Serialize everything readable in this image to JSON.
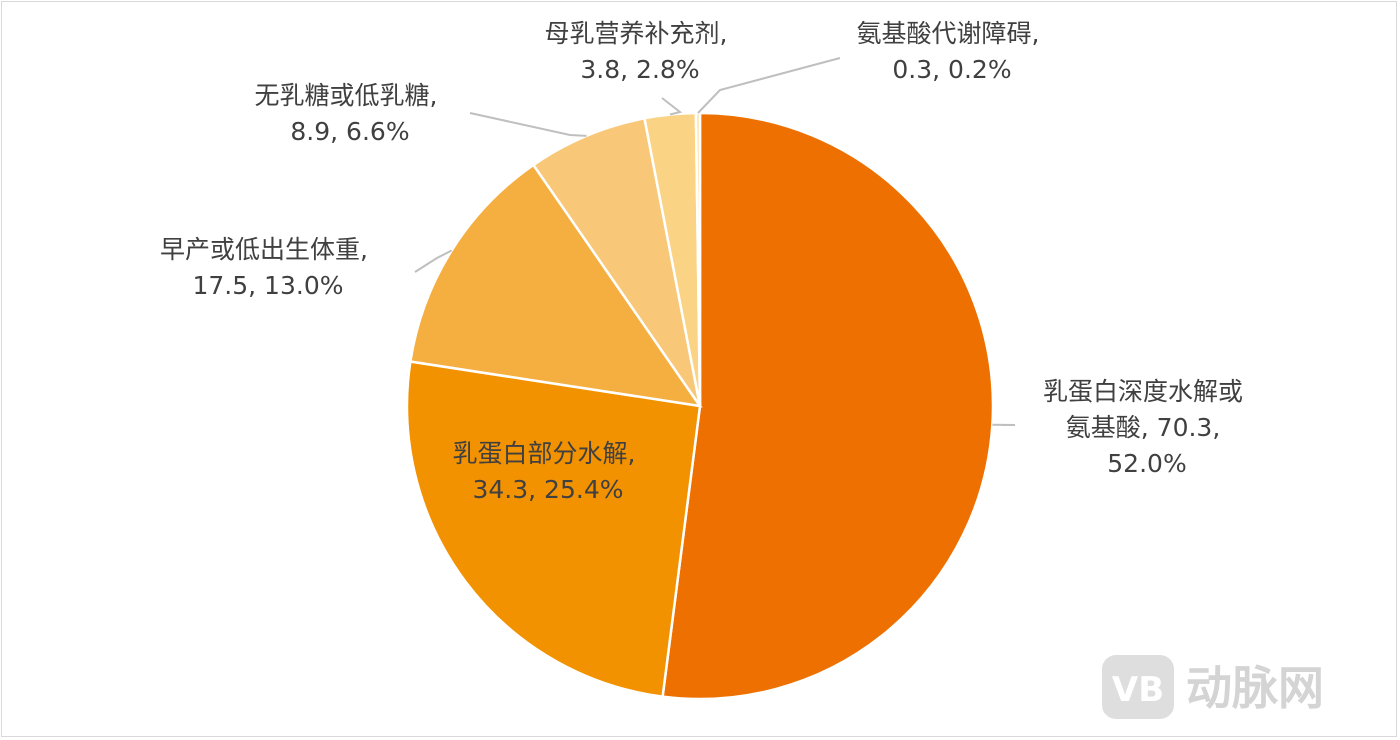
{
  "chart_data": {
    "type": "pie",
    "title": "",
    "colors": [
      "#ED7000",
      "#F29200",
      "#F5AE40",
      "#F8C878",
      "#FAD385",
      "#FCE2A8"
    ],
    "slices": [
      {
        "label": "乳蛋白深度水解或氨基酸",
        "value": 70.3,
        "percent": "52.0%",
        "line1": "乳蛋白深度水解或",
        "line2": "氨基酸, 70.3,",
        "line3": "52.0%"
      },
      {
        "label": "乳蛋白部分水解",
        "value": 34.3,
        "percent": "25.4%",
        "line1": "乳蛋白部分水解,",
        "line2": "34.3, 25.4%"
      },
      {
        "label": "早产或低出生体重",
        "value": 17.5,
        "percent": "13.0%",
        "line1": "早产或低出生体重,",
        "line2": "17.5, 13.0%"
      },
      {
        "label": "无乳糖或低乳糖",
        "value": 8.9,
        "percent": "6.6%",
        "line1": "无乳糖或低乳糖,",
        "line2": "8.9, 6.6%"
      },
      {
        "label": "母乳营养补充剂",
        "value": 3.8,
        "percent": "2.8%",
        "line1": "母乳营养补充剂,",
        "line2": "3.8, 2.8%"
      },
      {
        "label": "氨基酸代谢障碍",
        "value": 0.3,
        "percent": "0.2%",
        "line1": "氨基酸代谢障碍,",
        "line2": "0.3, 0.2%"
      }
    ]
  },
  "watermark": {
    "text": "动脉网",
    "logo_text": "VB"
  }
}
